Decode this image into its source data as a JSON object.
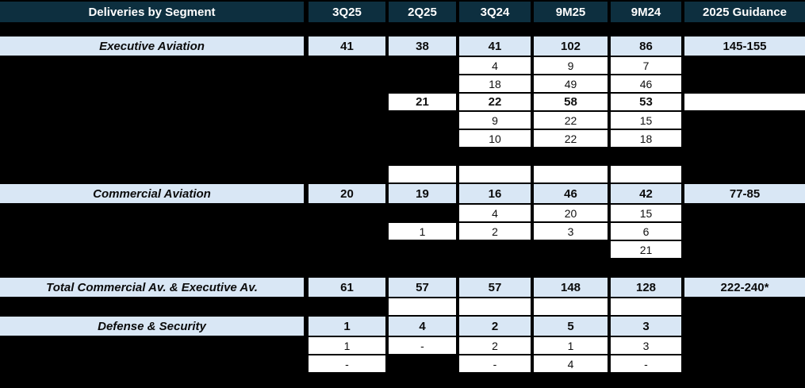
{
  "table": {
    "title": "Deliveries by Segment",
    "column_headers": [
      "Deliveries by Segment",
      "3Q25",
      "2Q25",
      "3Q24",
      "9M25",
      "9M24",
      "2025 Guidance"
    ],
    "colors": {
      "header_bg": "#0D2F3F",
      "header_text": "#FFFFFF",
      "segment_row_bg": "#D9E7F5",
      "data_cell_bg": "#FFFFFF",
      "background": "#000000",
      "text": "#111111"
    },
    "rows": [
      {
        "name": "header-row",
        "kind": "header",
        "gap_before": 2,
        "cells": [
          {
            "t": "Deliveries by Segment",
            "s": "head"
          },
          {
            "t": "3Q25",
            "s": "head"
          },
          {
            "t": "2Q25",
            "s": "head"
          },
          {
            "t": "3Q24",
            "s": "head"
          },
          {
            "t": "9M25",
            "s": "head"
          },
          {
            "t": "9M24",
            "s": "head"
          },
          {
            "t": "2025 Guidance",
            "s": "head"
          }
        ]
      },
      {
        "name": "segment-row-executive-aviation",
        "kind": "segment",
        "gap_before": 18,
        "cells": [
          {
            "t": "Executive Aviation",
            "s": "seg-label"
          },
          {
            "t": "41",
            "s": "seg"
          },
          {
            "t": "38",
            "s": "seg"
          },
          {
            "t": "41",
            "s": "seg"
          },
          {
            "t": "102",
            "s": "seg"
          },
          {
            "t": "86",
            "s": "seg"
          },
          {
            "t": "145-155",
            "s": "seg"
          }
        ]
      },
      {
        "name": "sub-row",
        "kind": "sub",
        "gap_before": 2,
        "cells": [
          null,
          null,
          null,
          {
            "t": "4",
            "s": "val"
          },
          {
            "t": "9",
            "s": "val"
          },
          {
            "t": "7",
            "s": "val"
          },
          null
        ]
      },
      {
        "name": "sub-row",
        "kind": "sub",
        "gap_before": 2,
        "cells": [
          null,
          null,
          null,
          {
            "t": "18",
            "s": "val"
          },
          {
            "t": "49",
            "s": "val"
          },
          {
            "t": "46",
            "s": "val"
          },
          null
        ]
      },
      {
        "name": "sub-row-bold",
        "kind": "sub",
        "gap_before": 2,
        "cells": [
          null,
          null,
          {
            "t": "21",
            "s": "valb"
          },
          {
            "t": "22",
            "s": "valb"
          },
          {
            "t": "58",
            "s": "valb"
          },
          {
            "t": "53",
            "s": "valb"
          },
          {
            "t": "",
            "s": "empty"
          }
        ]
      },
      {
        "name": "sub-row",
        "kind": "sub",
        "gap_before": 2,
        "cells": [
          null,
          null,
          null,
          {
            "t": "9",
            "s": "val"
          },
          {
            "t": "22",
            "s": "val"
          },
          {
            "t": "15",
            "s": "val"
          },
          null
        ]
      },
      {
        "name": "sub-row",
        "kind": "sub",
        "gap_before": 2,
        "cells": [
          null,
          null,
          null,
          {
            "t": "10",
            "s": "val"
          },
          {
            "t": "22",
            "s": "val"
          },
          {
            "t": "18",
            "s": "val"
          },
          null
        ]
      },
      {
        "name": "spacer-row",
        "kind": "spacer",
        "gap_before": 24,
        "cells": [
          null,
          null,
          {
            "t": "",
            "s": "empty"
          },
          {
            "t": "",
            "s": "empty"
          },
          {
            "t": "",
            "s": "empty"
          },
          {
            "t": "",
            "s": "empty"
          },
          null
        ]
      },
      {
        "name": "segment-row-commercial-aviation",
        "kind": "segment",
        "gap_before": 2,
        "cells": [
          {
            "t": "Commercial Aviation",
            "s": "seg-label"
          },
          {
            "t": "20",
            "s": "seg"
          },
          {
            "t": "19",
            "s": "seg"
          },
          {
            "t": "16",
            "s": "seg"
          },
          {
            "t": "46",
            "s": "seg"
          },
          {
            "t": "42",
            "s": "seg"
          },
          {
            "t": "77-85",
            "s": "seg"
          }
        ]
      },
      {
        "name": "sub-row",
        "kind": "sub",
        "gap_before": 2,
        "cells": [
          null,
          null,
          null,
          {
            "t": "4",
            "s": "val"
          },
          {
            "t": "20",
            "s": "val"
          },
          {
            "t": "15",
            "s": "val"
          },
          null
        ]
      },
      {
        "name": "sub-row",
        "kind": "sub",
        "gap_before": 2,
        "cells": [
          null,
          null,
          {
            "t": "1",
            "s": "val"
          },
          {
            "t": "2",
            "s": "val"
          },
          {
            "t": "3",
            "s": "val"
          },
          {
            "t": "6",
            "s": "val"
          },
          null
        ]
      },
      {
        "name": "sub-row",
        "kind": "sub",
        "gap_before": 2,
        "cells": [
          null,
          null,
          null,
          null,
          null,
          {
            "t": "21",
            "s": "val"
          },
          null
        ]
      },
      {
        "name": "segment-row-total",
        "kind": "segment",
        "gap_before": 25,
        "cells": [
          {
            "t": "Total Commercial Av. & Executive Av.",
            "s": "seg-label"
          },
          {
            "t": "61",
            "s": "seg"
          },
          {
            "t": "57",
            "s": "seg"
          },
          {
            "t": "57",
            "s": "seg"
          },
          {
            "t": "148",
            "s": "seg"
          },
          {
            "t": "128",
            "s": "seg"
          },
          {
            "t": "222-240*",
            "s": "seg"
          }
        ]
      },
      {
        "name": "spacer-row",
        "kind": "spacer",
        "gap_before": 2,
        "cells": [
          null,
          null,
          {
            "t": "",
            "s": "empty"
          },
          {
            "t": "",
            "s": "empty"
          },
          {
            "t": "",
            "s": "empty"
          },
          {
            "t": "",
            "s": "empty"
          },
          null
        ]
      },
      {
        "name": "segment-row-defense-security",
        "kind": "segment",
        "gap_before": 2,
        "cells": [
          {
            "t": "Defense & Security",
            "s": "seg-label"
          },
          {
            "t": "1",
            "s": "seg"
          },
          {
            "t": "4",
            "s": "seg"
          },
          {
            "t": "2",
            "s": "seg"
          },
          {
            "t": "5",
            "s": "seg"
          },
          {
            "t": "3",
            "s": "seg"
          },
          null
        ]
      },
      {
        "name": "sub-row",
        "kind": "sub",
        "gap_before": 2,
        "cells": [
          null,
          {
            "t": "1",
            "s": "val"
          },
          {
            "t": "-",
            "s": "val"
          },
          {
            "t": "2",
            "s": "val"
          },
          {
            "t": "1",
            "s": "val"
          },
          {
            "t": "3",
            "s": "val"
          },
          null
        ]
      },
      {
        "name": "sub-row",
        "kind": "sub",
        "gap_before": 2,
        "cells": [
          null,
          {
            "t": "-",
            "s": "val"
          },
          null,
          {
            "t": "-",
            "s": "val"
          },
          {
            "t": "4",
            "s": "val"
          },
          {
            "t": "-",
            "s": "val"
          },
          null
        ]
      }
    ]
  }
}
